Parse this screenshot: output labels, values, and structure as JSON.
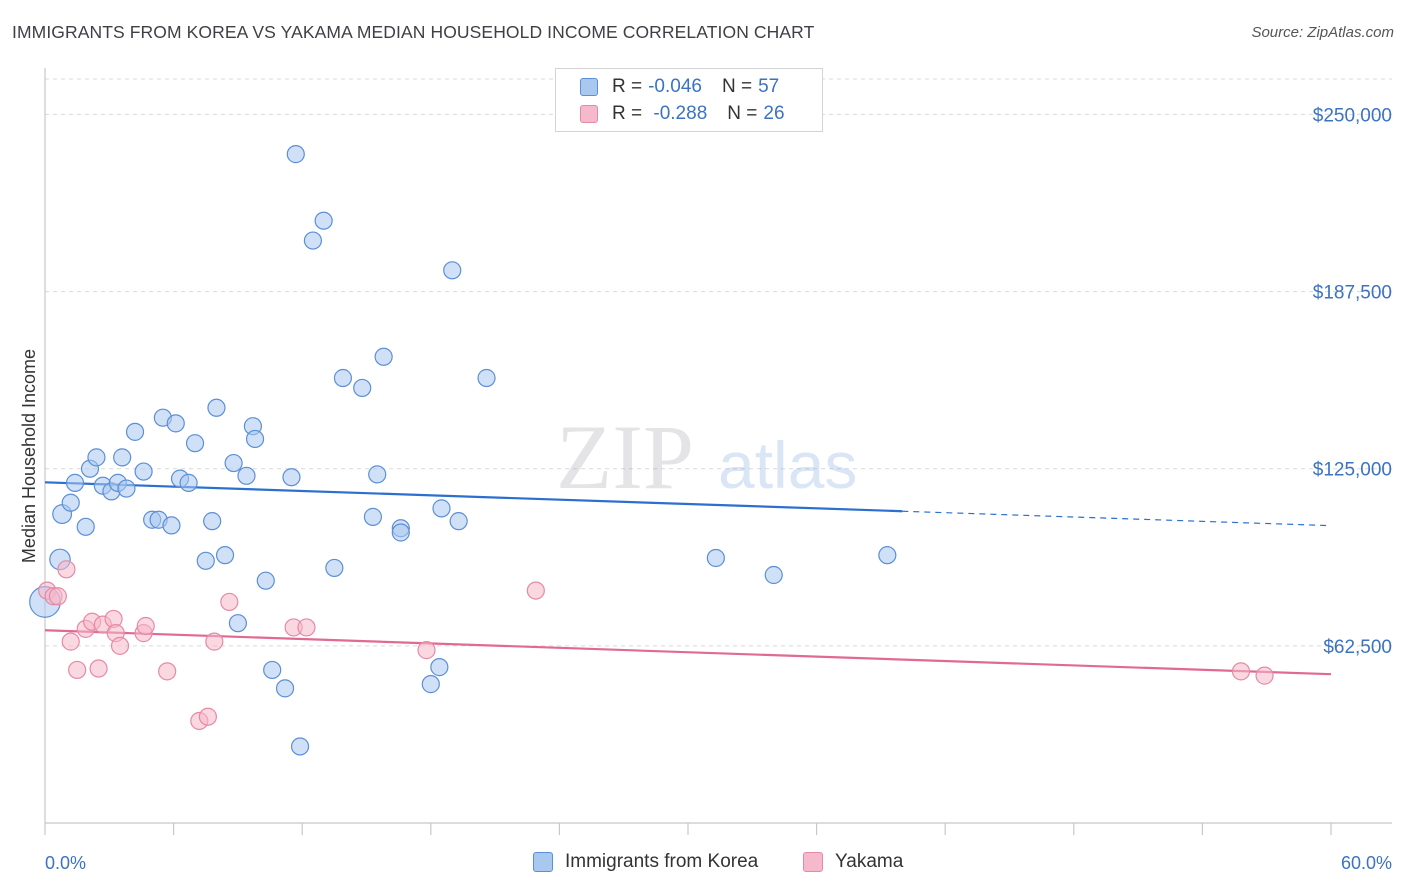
{
  "title": "IMMIGRANTS FROM KOREA VS YAKAMA MEDIAN HOUSEHOLD INCOME CORRELATION CHART",
  "source": "Source: ZipAtlas.com",
  "watermark": {
    "zip": "ZIP",
    "atlas": "atlas"
  },
  "legend": {
    "rows": [
      {
        "r_label": "R = ",
        "r_value": "-0.046",
        "n_label": "N = ",
        "n_value": "57"
      },
      {
        "r_label": "R = ",
        "r_value": " -0.288",
        "n_label": "N = ",
        "n_value": "26"
      }
    ]
  },
  "colors": {
    "blue_fill": "#a9c8f0",
    "blue_stroke": "#5b8fd6",
    "blue_line": "#2b6fcf",
    "pink_fill": "#f6b8cb",
    "pink_stroke": "#e58aa6",
    "pink_line": "#e06a93",
    "tick_text": "#3b73c4",
    "grid": "#d9d9de"
  },
  "chart_data": {
    "type": "scatter",
    "title": "IMMIGRANTS FROM KOREA VS YAKAMA MEDIAN HOUSEHOLD INCOME CORRELATION CHART",
    "xlabel": "",
    "ylabel": "Median Household Income",
    "xlim": [
      0,
      60
    ],
    "ylim": [
      0,
      262500
    ],
    "x_tick_labels": [
      "0.0%",
      "60.0%"
    ],
    "y_ticks": [
      62500,
      125000,
      187500,
      250000
    ],
    "y_tick_labels": [
      "$62,500",
      "$125,000",
      "$187,500",
      "$250,000"
    ],
    "grid": true,
    "legend_position": "bottom",
    "series": [
      {
        "name": "Immigrants from Korea",
        "color": "#a9c8f0",
        "stroke": "#5b8fd6",
        "r": -0.046,
        "n": 57,
        "trend": {
          "x0": 0,
          "y0": 120200,
          "x1": 40,
          "y1": 110000,
          "dashed_to_x": 60,
          "dashed_to_y": 104900
        },
        "points": [
          [
            0.0,
            78000,
            1.8
          ],
          [
            0.7,
            93000,
            1.2
          ],
          [
            0.8,
            109000,
            1.1
          ],
          [
            1.2,
            113000,
            1
          ],
          [
            1.4,
            120000,
            1
          ],
          [
            1.9,
            104500,
            1
          ],
          [
            2.1,
            125000,
            1
          ],
          [
            2.4,
            129000,
            1
          ],
          [
            2.7,
            119000,
            1
          ],
          [
            3.1,
            117000,
            1
          ],
          [
            3.4,
            120000,
            1
          ],
          [
            3.6,
            129000,
            1
          ],
          [
            3.8,
            118000,
            1
          ],
          [
            4.2,
            138000,
            1
          ],
          [
            4.6,
            124000,
            1
          ],
          [
            5.0,
            107000,
            1
          ],
          [
            5.3,
            107000,
            1
          ],
          [
            5.5,
            143000,
            1
          ],
          [
            5.9,
            105000,
            1
          ],
          [
            6.1,
            141000,
            1
          ],
          [
            6.3,
            121500,
            1
          ],
          [
            6.7,
            120000,
            1
          ],
          [
            7.0,
            134000,
            1
          ],
          [
            7.5,
            92500,
            1
          ],
          [
            7.8,
            106500,
            1
          ],
          [
            8.0,
            146500,
            1
          ],
          [
            8.4,
            94500,
            1
          ],
          [
            8.8,
            127000,
            1
          ],
          [
            9.0,
            70500,
            1
          ],
          [
            9.4,
            122500,
            1
          ],
          [
            9.7,
            140000,
            1
          ],
          [
            9.8,
            135500,
            1
          ],
          [
            10.3,
            85500,
            1
          ],
          [
            10.6,
            54000,
            1
          ],
          [
            11.2,
            47500,
            1
          ],
          [
            11.5,
            122000,
            1
          ],
          [
            11.7,
            236000,
            1
          ],
          [
            11.9,
            27000,
            1
          ],
          [
            12.5,
            205500,
            1
          ],
          [
            13.0,
            212500,
            1
          ],
          [
            13.5,
            90000,
            1
          ],
          [
            13.9,
            157000,
            1
          ],
          [
            14.8,
            153500,
            1
          ],
          [
            15.3,
            108000,
            1
          ],
          [
            15.5,
            123000,
            1
          ],
          [
            15.8,
            164500,
            1
          ],
          [
            16.6,
            104000,
            1
          ],
          [
            16.6,
            102500,
            1
          ],
          [
            18.0,
            49000,
            1
          ],
          [
            18.4,
            55000,
            1
          ],
          [
            18.5,
            111000,
            1
          ],
          [
            19.0,
            195000,
            1
          ],
          [
            19.3,
            106500,
            1
          ],
          [
            20.6,
            157000,
            1
          ],
          [
            31.3,
            93500,
            1
          ],
          [
            34.0,
            87500,
            1
          ],
          [
            39.3,
            94500,
            1
          ]
        ]
      },
      {
        "name": "Yakama",
        "color": "#f6b8cb",
        "stroke": "#e58aa6",
        "r": -0.288,
        "n": 26,
        "trend": {
          "x0": 0,
          "y0": 68000,
          "x1": 60,
          "y1": 52500
        },
        "points": [
          [
            0.1,
            82000,
            1
          ],
          [
            0.4,
            80000,
            1
          ],
          [
            0.6,
            80000,
            1
          ],
          [
            1.0,
            89500,
            1
          ],
          [
            1.2,
            64000,
            1
          ],
          [
            1.5,
            54000,
            1
          ],
          [
            1.9,
            68500,
            1
          ],
          [
            2.2,
            71000,
            1
          ],
          [
            2.5,
            54500,
            1
          ],
          [
            2.7,
            70000,
            1
          ],
          [
            3.2,
            72000,
            1
          ],
          [
            3.3,
            67000,
            1
          ],
          [
            3.5,
            62500,
            1
          ],
          [
            4.6,
            67000,
            1
          ],
          [
            4.7,
            69500,
            1
          ],
          [
            5.7,
            53500,
            1
          ],
          [
            7.2,
            36000,
            1
          ],
          [
            7.6,
            37500,
            1
          ],
          [
            7.9,
            64000,
            1
          ],
          [
            8.6,
            78000,
            1
          ],
          [
            11.6,
            69000,
            1
          ],
          [
            12.2,
            69000,
            1
          ],
          [
            17.8,
            61000,
            1
          ],
          [
            22.9,
            82000,
            1
          ],
          [
            55.8,
            53500,
            1
          ],
          [
            56.9,
            52000,
            1
          ]
        ]
      }
    ]
  },
  "bottom_legend": [
    {
      "label": "Immigrants from Korea"
    },
    {
      "label": "Yakama"
    }
  ]
}
